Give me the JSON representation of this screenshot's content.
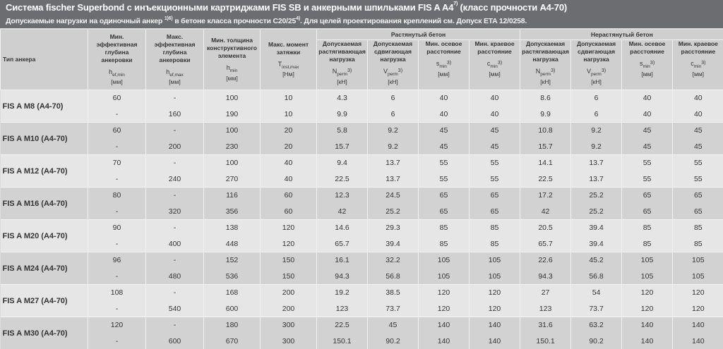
{
  "header": {
    "title": "Система fischer Superbond с инъекционными картриджами FIS SB и анкерными шпильками  FIS A A4",
    "title_sup": "7)",
    "title_tail": " (класс прочности А4-70)",
    "subtitle_a": "Допускаемые нагрузки на одиночный анкер ",
    "subtitle_sup1": "1)6)",
    "subtitle_b": " в бетоне класса прочности C20/25",
    "subtitle_sup2": "4)",
    "subtitle_c": ". Для целей проектирования креплений см. Допуск ETA 12/0258."
  },
  "table": {
    "groups": {
      "cracked": "Растянутый бетон",
      "noncracked": "Нерастянутый бетон"
    },
    "columns": {
      "type": "Тип анкера",
      "hef_min": {
        "label": "Мин. эффективная глубина анкеровки",
        "sym": "h",
        "sub": "ef,min",
        "unit": "[мм]"
      },
      "hef_max": {
        "label": "Макс. эффективная глубина анкеровки",
        "sym": "h",
        "sub": "ef,max",
        "unit": "[мм]"
      },
      "hmin": {
        "label": "Мин. толщина конструктивного элемента",
        "sym": "h",
        "sub": "min",
        "unit": "[мм]"
      },
      "tinst": {
        "label": "Макс. момент затяжки",
        "sym": "T",
        "sub": "inst,max",
        "unit": "[Нм]"
      },
      "nperm": {
        "label": "Допускаемая растягивающая нагрузка",
        "sym": "N",
        "sub": "perm",
        "sup": "3)",
        "unit": "[кН]"
      },
      "vperm": {
        "label": "Допускаемая сдвигающая нагрузка",
        "sym": "V",
        "sub": "perm",
        "sup": "3)",
        "unit": "[кН]"
      },
      "smin": {
        "label": "Мин. осевое расстояние",
        "sym": "s",
        "sub": "min",
        "sup": "3)",
        "unit": "[мм]"
      },
      "cmin": {
        "label": "Мин. краевое расстояние",
        "sym": "c",
        "sub": "min",
        "sup": "3)",
        "unit": "[мм]"
      }
    },
    "rows": [
      {
        "type": "FIS A M8 (A4-70)",
        "r": [
          [
            "60",
            "-",
            "100",
            "10",
            "4.3",
            "6",
            "40",
            "40",
            "8.6",
            "6",
            "40",
            "40"
          ],
          [
            "-",
            "160",
            "190",
            "10",
            "9.9",
            "6",
            "40",
            "40",
            "9.9",
            "6",
            "40",
            "40"
          ]
        ]
      },
      {
        "type": "FIS A M10 (A4-70)",
        "r": [
          [
            "60",
            "-",
            "100",
            "20",
            "5.8",
            "9.2",
            "45",
            "45",
            "10.8",
            "9.2",
            "45",
            "45"
          ],
          [
            "-",
            "200",
            "230",
            "20",
            "15.7",
            "9.2",
            "45",
            "45",
            "15.7",
            "9.2",
            "45",
            "45"
          ]
        ]
      },
      {
        "type": "FIS A M12 (A4-70)",
        "r": [
          [
            "70",
            "-",
            "100",
            "40",
            "9.4",
            "13.7",
            "55",
            "55",
            "14.1",
            "13.7",
            "55",
            "55"
          ],
          [
            "-",
            "240",
            "270",
            "40",
            "22.5",
            "13.7",
            "55",
            "55",
            "22.5",
            "13.7",
            "55",
            "55"
          ]
        ]
      },
      {
        "type": "FIS A M16 (A4-70)",
        "r": [
          [
            "80",
            "-",
            "116",
            "60",
            "12.3",
            "24.5",
            "65",
            "65",
            "17.2",
            "25.2",
            "65",
            "65"
          ],
          [
            "-",
            "320",
            "356",
            "60",
            "42",
            "25.2",
            "65",
            "65",
            "42",
            "25.2",
            "65",
            "65"
          ]
        ]
      },
      {
        "type": "FIS A M20 (A4-70)",
        "r": [
          [
            "90",
            "-",
            "138",
            "120",
            "14.6",
            "29.3",
            "85",
            "85",
            "20.5",
            "39.4",
            "85",
            "85"
          ],
          [
            "-",
            "400",
            "448",
            "120",
            "65.7",
            "39.4",
            "85",
            "85",
            "65.7",
            "39.4",
            "85",
            "85"
          ]
        ]
      },
      {
        "type": "FIS A M24 (A4-70)",
        "r": [
          [
            "96",
            "-",
            "152",
            "150",
            "16.1",
            "32.2",
            "105",
            "105",
            "22.6",
            "45.2",
            "105",
            "105"
          ],
          [
            "-",
            "480",
            "536",
            "150",
            "94.3",
            "56.8",
            "105",
            "105",
            "94.3",
            "56.8",
            "105",
            "105"
          ]
        ]
      },
      {
        "type": "FIS A M27 (A4-70)",
        "r": [
          [
            "108",
            "-",
            "168",
            "200",
            "19.2",
            "38.5",
            "120",
            "120",
            "27",
            "54",
            "120",
            "120"
          ],
          [
            "-",
            "540",
            "600",
            "200",
            "123",
            "73.7",
            "120",
            "120",
            "123",
            "73.7",
            "120",
            "120"
          ]
        ]
      },
      {
        "type": "FIS A M30 (A4-70)",
        "r": [
          [
            "120",
            "-",
            "180",
            "300",
            "22.5",
            "45",
            "140",
            "140",
            "31.6",
            "63.2",
            "140",
            "140"
          ],
          [
            "-",
            "600",
            "670",
            "300",
            "150.1",
            "90.2",
            "140",
            "140",
            "150.1",
            "90.2",
            "140",
            "140"
          ]
        ]
      }
    ]
  }
}
